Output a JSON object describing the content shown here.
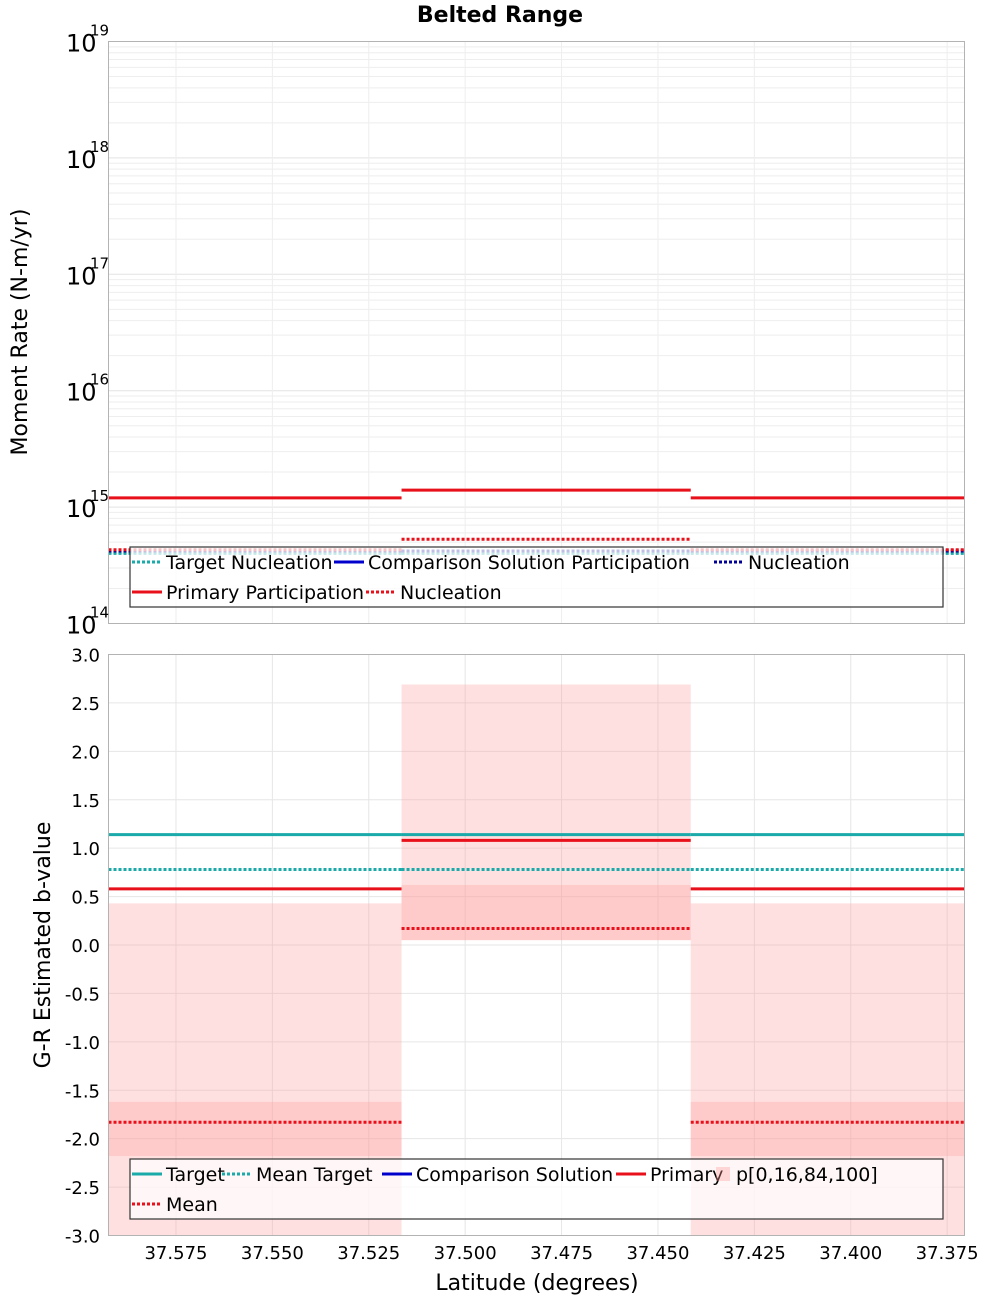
{
  "title": "Belted Range",
  "xlabel": "Latitude (degrees)",
  "chart_data": [
    {
      "type": "line",
      "name": "moment-rate-panel",
      "ylabel": "Moment Rate (N-m/yr)",
      "yscale": "log",
      "ylim": [
        100000000000000.0,
        1e+19
      ],
      "xlim": [
        37.5925,
        37.3705
      ],
      "x_reversed": true,
      "grid": true,
      "y_ticks": [
        {
          "base": "10",
          "exp": "14",
          "value": 100000000000000.0
        },
        {
          "base": "10",
          "exp": "15",
          "value": 1000000000000000.0
        },
        {
          "base": "10",
          "exp": "16",
          "value": 1e+16
        },
        {
          "base": "10",
          "exp": "17",
          "value": 1e+17
        },
        {
          "base": "10",
          "exp": "18",
          "value": 1e+18
        },
        {
          "base": "10",
          "exp": "19",
          "value": 1e+19
        }
      ],
      "bins": [
        [
          37.5925,
          37.5165
        ],
        [
          37.5165,
          37.4415
        ],
        [
          37.4415,
          37.3705
        ]
      ],
      "series": [
        {
          "name": "Target Nucleation",
          "color": "#1aaaaa",
          "style": "dotted",
          "width": 3,
          "values": [
            400000000000000.0,
            400000000000000.0,
            400000000000000.0
          ]
        },
        {
          "name": "Comparison Solution Participation",
          "color": "#0000cc",
          "style": "solid",
          "width": 3,
          "values": [
            null,
            null,
            null
          ]
        },
        {
          "name": "Nucleation",
          "color": "#000099",
          "style": "dotted",
          "width": 3,
          "values": [
            420000000000000.0,
            420000000000000.0,
            420000000000000.0
          ]
        },
        {
          "name": "Primary Participation",
          "color": "#e8101a",
          "style": "solid",
          "width": 3,
          "values": [
            1200000000000000.0,
            1400000000000000.0,
            1200000000000000.0
          ]
        },
        {
          "name": "Nucleation",
          "color": "#e8101a",
          "style": "dotted",
          "width": 3,
          "values": [
            430000000000000.0,
            530000000000000.0,
            430000000000000.0
          ]
        }
      ],
      "legend": {
        "placement": "bottom"
      }
    },
    {
      "type": "line",
      "name": "b-value-panel",
      "ylabel": "G-R Estimated b-value",
      "yscale": "linear",
      "ylim": [
        -3.0,
        3.0
      ],
      "xlim": [
        37.5925,
        37.3705
      ],
      "x_reversed": true,
      "grid": true,
      "y_ticks": [
        "3.0",
        "2.5",
        "2.0",
        "1.5",
        "1.0",
        "0.5",
        "0.0",
        "-0.5",
        "-1.0",
        "-1.5",
        "-2.0",
        "-2.5",
        "-3.0"
      ],
      "x_ticks": [
        "37.575",
        "37.550",
        "37.525",
        "37.500",
        "37.475",
        "37.450",
        "37.425",
        "37.400",
        "37.375"
      ],
      "bins": [
        [
          37.5925,
          37.5165
        ],
        [
          37.5165,
          37.4415
        ],
        [
          37.4415,
          37.3705
        ]
      ],
      "bands": [
        {
          "name": "p[0,16,84,100]",
          "color": "#ff9999",
          "outer": [
            [
              -3.0,
              0.43
            ],
            [
              0.05,
              2.69
            ],
            [
              -3.0,
              0.43
            ]
          ],
          "inner": [
            [
              -2.18,
              -1.62
            ],
            [
              0.05,
              0.62
            ],
            [
              -2.18,
              -1.62
            ]
          ]
        }
      ],
      "series": [
        {
          "name": "Target",
          "color": "#1aaaaa",
          "style": "solid",
          "width": 3,
          "values": [
            1.14,
            1.14,
            1.14
          ]
        },
        {
          "name": "Mean Target",
          "color": "#1aaaaa",
          "style": "dotted",
          "width": 3,
          "values": [
            0.78,
            0.78,
            0.78
          ]
        },
        {
          "name": "Comparison Solution",
          "color": "#0000cc",
          "style": "solid",
          "width": 3,
          "values": [
            null,
            null,
            null
          ]
        },
        {
          "name": "Primary",
          "color": "#e8101a",
          "style": "solid",
          "width": 3,
          "values": [
            0.58,
            1.08,
            0.58
          ]
        },
        {
          "name": "Mean",
          "color": "#e8101a",
          "style": "dotted",
          "width": 3,
          "values": [
            -1.83,
            0.17,
            -1.83
          ]
        }
      ],
      "legend": {
        "placement": "bottom"
      }
    }
  ]
}
